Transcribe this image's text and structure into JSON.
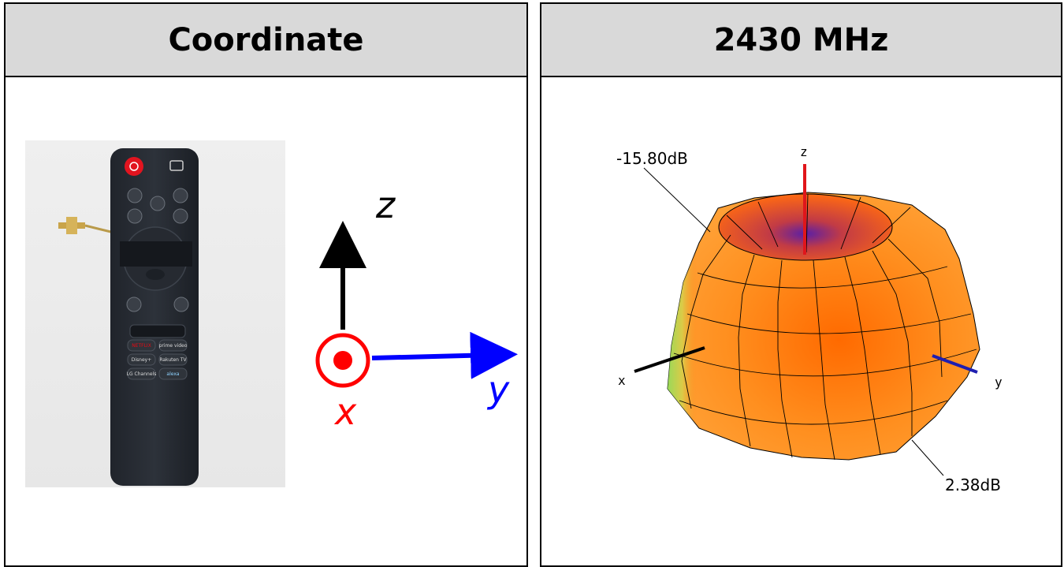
{
  "panels": {
    "left": {
      "title": "Coordinate"
    },
    "right": {
      "title": "2430 MHz"
    }
  },
  "coordinate": {
    "axis_z": "z",
    "axis_y": "y",
    "axis_x": "x",
    "colors": {
      "z": "#000000",
      "y": "#0000ff",
      "x": "#ff0000"
    }
  },
  "remote": {
    "buttons": {
      "netflix": "NETFLIX",
      "prime": "prime video",
      "disney": "Disney+",
      "rakuten": "Rakuten TV",
      "lg_channels": "LG Channels",
      "alexa": "alexa"
    }
  },
  "pattern": {
    "frequency": "2430 MHz",
    "min_label": "-15.80dB",
    "max_label": "2.38dB",
    "axis_z": "z",
    "axis_x": "x",
    "axis_y": "y",
    "colors": {
      "surface": "#ff8c1a",
      "hot": "#ff4d00",
      "cold": "#8ee05a",
      "axis_z": "#e0161b",
      "axis_y": "#1f1fb0",
      "axis_x": "#000000"
    }
  }
}
